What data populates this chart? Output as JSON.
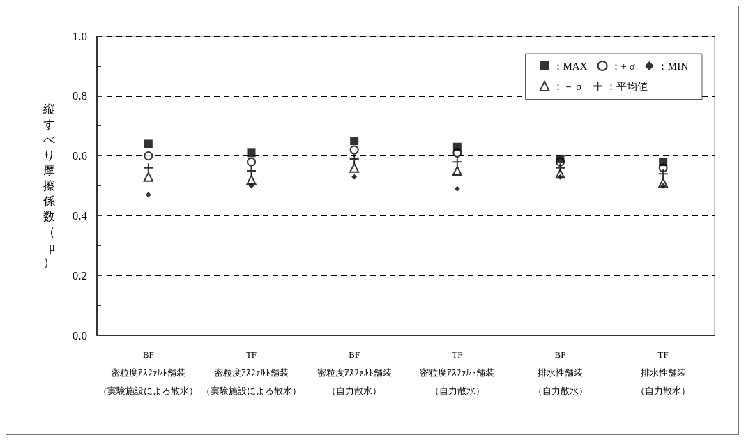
{
  "chart_data": {
    "type": "scatter",
    "ylabel": "縦すべり摩擦係数（μ）",
    "categories": [
      "BF\n密粒度ｱｽﾌｧﾙﾄ舗装（実験施設による散水）",
      "TF\n密粒度ｱｽﾌｧﾙﾄ舗装（実験施設による散水）",
      "BF\n密粒度ｱｽﾌｧﾙﾄ舗装（自力散水）",
      "TF\n密粒度ｱｽﾌｧﾙﾄ舗装（自力散水）",
      "BF\n排水性舗装（自力散水）",
      "TF\n排水性舗装（自力散水）"
    ],
    "series": [
      {
        "name": "：MAX",
        "color": "#000000",
        "marker": "square",
        "values": [
          0.64,
          0.61,
          0.65,
          0.63,
          0.59,
          0.58
        ]
      },
      {
        "name": "：+ σ",
        "color": "#000000",
        "marker": "circle",
        "values": [
          0.6,
          0.58,
          0.62,
          0.61,
          0.58,
          0.56
        ]
      },
      {
        "name": "：MIN",
        "color": "#000000",
        "marker": "diamond",
        "values": [
          0.47,
          0.5,
          0.53,
          0.49,
          0.53,
          0.5
        ]
      },
      {
        "name": "：－ σ",
        "color": "#000000",
        "marker": "triangle",
        "values": [
          0.53,
          0.52,
          0.56,
          0.55,
          0.54,
          0.51
        ]
      },
      {
        "name": "：平均値",
        "color": "#000000",
        "marker": "cross",
        "values": [
          0.56,
          0.55,
          0.59,
          0.58,
          0.56,
          0.54
        ]
      }
    ],
    "ylim": [
      0,
      1
    ],
    "yticks": [
      {
        "value": 0,
        "label": "0.0"
      },
      {
        "value": 0.1,
        "label": null
      },
      {
        "value": 0.2,
        "label": "0.2"
      },
      {
        "value": 0.3,
        "label": null
      },
      {
        "value": 0.4,
        "label": "0.4"
      },
      {
        "value": 0.5,
        "label": null
      },
      {
        "value": 0.6,
        "label": "0.6"
      },
      {
        "value": 0.7,
        "label": null
      },
      {
        "value": 0.8,
        "label": "0.8"
      },
      {
        "value": 0.9,
        "label": null
      },
      {
        "value": 1,
        "label": "1.0"
      }
    ],
    "grid": "y",
    "legend": "top right"
  }
}
